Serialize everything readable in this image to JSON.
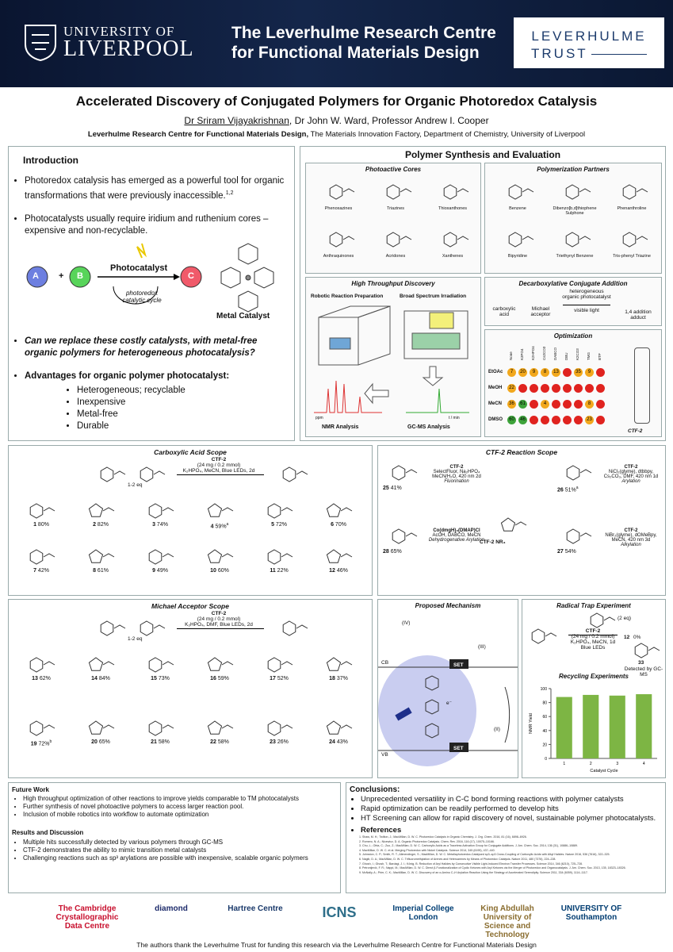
{
  "header": {
    "university_line1": "UNIVERSITY OF",
    "university_line2": "LIVERPOOL",
    "centre_line1": "The Leverhulme Research Centre",
    "centre_line2": "for Functional Materials Design",
    "trust_line1": "LEVERHULME",
    "trust_line2": "TRUST"
  },
  "title": "Accelerated Discovery of Conjugated Polymers for Organic Photoredox Catalysis",
  "authors": {
    "lead": "Dr Sriram Vijayakrishnan",
    "others": ", Dr John W. Ward, Professor Andrew I. Cooper"
  },
  "affiliation": {
    "centre": "Leverhulme Research Centre for Functional Materials Design,",
    "rest": " The Materials Innovation Factory, Department of Chemistry, University of Liverpool"
  },
  "introduction": {
    "heading": "Introduction",
    "bullets": [
      {
        "text": "Photoredox catalysis has emerged as a powerful tool for organic transformations that were previously inaccessible.",
        "sup": "1,2"
      },
      {
        "text": "Photocatalysts usually require iridium and ruthenium cores – expensive and non-recyclable."
      }
    ],
    "scheme": {
      "a": "A",
      "plus": "+",
      "b": "B",
      "c": "C",
      "catalyst": "Photocatalyst",
      "cycle": "photoredox catalytic cycle",
      "metal": "Metal Catalyst"
    },
    "question": "Can we replace these costly catalysts, with metal-free organic polymers for heterogeneous photocatalysis?",
    "advantages_heading": "Advantages for organic polymer photocatalyst:",
    "advantages": [
      "Heterogeneous; recyclable",
      "Inexpensive",
      "Metal-free",
      "Durable"
    ]
  },
  "synthesis": {
    "heading": "Polymer Synthesis and Evaluation",
    "cores": {
      "heading": "Photoactive Cores",
      "items": [
        "Phenoxazines",
        "Triazines",
        "Thioxanthones",
        "Anthraquinones",
        "Acridones",
        "Xanthenes"
      ]
    },
    "partners": {
      "heading": "Polymerization Partners",
      "items": [
        "Benzene",
        "Dibenzo[b,d]thiophene Sulphone",
        "Phenanthroline",
        "Bipyridine",
        "Triethynyl Benzene",
        "Tris-phenyl Triazine"
      ]
    },
    "hts": {
      "heading": "High Throughput Discovery",
      "robot": "Robotic Reaction Preparation",
      "irradiation": "Broad Spectrum Irradiation",
      "ppm": "ppm",
      "time": "t / min",
      "nmr": "NMR Analysis",
      "gcms": "GC-MS Analysis"
    },
    "decarbox": {
      "heading": "Decarboxylative Conjugate Addition",
      "acid": "carboxylic acid",
      "acceptor": "Michael acceptor",
      "conditions": "heterogeneous organic photocatalyst",
      "light": "visible light",
      "product": "1,4 addition adduct"
    },
    "optimization": {
      "heading": "Optimization",
      "columns": [
        "None",
        "K3PO4",
        "K2HPO4",
        "Cs2CO3",
        "DABCO",
        "DBU",
        "K2CO3",
        "TMG",
        "BTP"
      ],
      "rows": [
        {
          "solvent": "EtOAc",
          "cells": [
            7,
            20,
            9,
            8,
            13,
            null,
            35,
            9,
            null
          ]
        },
        {
          "solvent": "MeOH",
          "cells": [
            22,
            null,
            null,
            null,
            null,
            null,
            null,
            null,
            null
          ]
        },
        {
          "solvent": "MeCN",
          "cells": [
            36,
            61,
            null,
            4,
            null,
            null,
            null,
            8,
            null
          ]
        },
        {
          "solvent": "DMSO",
          "cells": [
            60,
            46,
            null,
            null,
            null,
            null,
            null,
            23,
            null
          ]
        }
      ],
      "catalyst": "CTF-2"
    }
  },
  "carboxylic_scope": {
    "heading": "Carboxylic Acid Scope",
    "conditions": [
      "CTF-2",
      "(24 mg / 0.2 mmol)",
      "K₂HPO₄, MeCN, Blue LEDs, 2d"
    ],
    "equiv": "1-2 eq",
    "compounds": [
      {
        "id": "1",
        "yield": "80%"
      },
      {
        "id": "2",
        "yield": "82%"
      },
      {
        "id": "3",
        "yield": "74%"
      },
      {
        "id": "4",
        "yield": "59%",
        "sup": "a"
      },
      {
        "id": "5",
        "yield": "72%"
      },
      {
        "id": "6",
        "yield": "70%"
      },
      {
        "id": "7",
        "yield": "42%"
      },
      {
        "id": "8",
        "yield": "61%"
      },
      {
        "id": "9",
        "yield": "49%"
      },
      {
        "id": "10",
        "yield": "60%"
      },
      {
        "id": "11",
        "yield": "22%"
      },
      {
        "id": "12",
        "yield": "46%"
      }
    ]
  },
  "ctf2_scope": {
    "heading": "CTF-2 Reaction Scope",
    "center": "CTF-2  NR₃",
    "fluorination": {
      "conditions": [
        "CTF-2",
        "SelectFluor, Na₂HPO₄",
        "MeCN/H₂O, 420 nm 2d"
      ],
      "name": "Fluorination",
      "id": "25",
      "yield": "41%"
    },
    "arylation": {
      "conditions": [
        "CTF-2",
        "NiCl₂(glyme), dtbbpy,",
        "Cs₂CO₃, DMF, 420 nm 1d"
      ],
      "name": "Arylation",
      "id": "26",
      "yield": "51%",
      "sup": "a"
    },
    "alkylation": {
      "conditions": [
        "CTF-2",
        "NiBr₂(glyme), dOMeBpy,",
        "MeCN, 420 nm 3d"
      ],
      "name": "Alkylation",
      "id": "27",
      "yield": "54%"
    },
    "dehydro": {
      "conditions": [
        "Co(dmgH)₂(DMAP)Cl",
        "AcOH, DABCO, MeCN"
      ],
      "name": "Dehydrogenative Arylation",
      "id": "28",
      "yield": "65%"
    }
  },
  "michael_scope": {
    "heading": "Michael Acceptor Scope",
    "conditions": [
      "CTF-2",
      "(24 mg / 0.2 mmol)",
      "K₂HPO₄, DMF, Blue LEDs, 2d"
    ],
    "equiv": "1-2 eq",
    "compounds": [
      {
        "id": "13",
        "yield": "62%"
      },
      {
        "id": "14",
        "yield": "84%"
      },
      {
        "id": "15",
        "yield": "73%"
      },
      {
        "id": "16",
        "yield": "59%"
      },
      {
        "id": "17",
        "yield": "52%"
      },
      {
        "id": "18",
        "yield": "37%"
      },
      {
        "id": "19",
        "yield": "72%",
        "sup": "b"
      },
      {
        "id": "20",
        "yield": "65%"
      },
      {
        "id": "21",
        "yield": "58%"
      },
      {
        "id": "22",
        "yield": "58%"
      },
      {
        "id": "23",
        "yield": "26%"
      },
      {
        "id": "24",
        "yield": "43%"
      }
    ]
  },
  "mechanism": {
    "heading": "Proposed Mechanism",
    "set": "SET",
    "cb": "CB",
    "vb": "VB",
    "electron": "e⁻",
    "steps": [
      "(IV)",
      "(III)",
      "(II)"
    ]
  },
  "radical_trap": {
    "heading": "Radical Trap Experiment",
    "tempo": "(2 eq)",
    "conditions": [
      "CTF-2",
      "(24 mg / 0.2 mmol)",
      "K₂HPO₄, MeCN, 1d",
      "Blue LEDs"
    ],
    "product": "12",
    "yield": "0%",
    "adduct": "33",
    "detected": "Detected by GC-MS"
  },
  "recycling": {
    "heading": "Recycling Experiments",
    "ylabel": "NMR Yield",
    "xlabel": "Catalyst Cycle",
    "categories": [
      "1",
      "2",
      "3",
      "4"
    ],
    "values": [
      88,
      91,
      90,
      92
    ],
    "ylim": [
      0,
      100
    ],
    "yticks": [
      0,
      20,
      40,
      60,
      80,
      100
    ],
    "color": "#7db544"
  },
  "future": {
    "heading": "Future Work",
    "items": [
      "High throughput optimization of other reactions to improve yields comparable to TM photocatalysts",
      "Further synthesis of novel photoactive polymers to access larger reaction pool.",
      "Inclusion of mobile robotics into workflow to automate optimization"
    ]
  },
  "results": {
    "heading": "Results and Discussion",
    "items": [
      "Multiple hits successfully detected by various polymers through GC-MS",
      "CTF-2 demonstrates the ability to mimic transition metal catalysts",
      "Challenging reactions such as sp³ arylations are possible with inexpensive, scalable organic polymers"
    ]
  },
  "conclusions": {
    "heading": "Conclusions:",
    "items": [
      "Unprecedented versatility in C-C bond forming reactions with polymer catalysts",
      "Rapid optimization can be readily performed to develop hits",
      "HT Screening can allow for rapid discovery of novel, sustainable polymer photocatalysts."
    ]
  },
  "references": {
    "heading": "References",
    "items": [
      "Shaw, M. H.; Twilton, J.; MacMillan, D. W. C. Photoredox Catalysis in Organic Chemistry. J. Org. Chem. 2016, 81 (16), 6898–6926.",
      "Romero, N. A.; Nicewicz, D. A. Organic Photoredox Catalysis. Chem. Rev. 2016, 116 (17), 10075–10166.",
      "Chu, L.; Ohta, C.; Zuo, Z.; MacMillan, D. W. C. Carboxylic Acids as a Traceless Activation Group for Conjugate Additions. J. Am. Chem. Soc. 2014, 136 (31), 10886–10889.",
      "MacMillan, D. W. C. et al. Merging Photoredox with Nickel Catalysis. Science 2014, 345 (6195), 437–440.",
      "Johnston, C. P.; Smith, R. T.; Allmendinger, S.; MacMillan, D. W. C. Metallaphotoredox-Catalysed sp3–sp3 Cross-Coupling of Carboxylic Acids with Alkyl Halides. Nature 2016, 536 (7616), 322–325.",
      "Nagib, D. A.; MacMillan, D. W. C. Trifluoromethylation of Arenes and Heteroarenes by Means of Photoredox Catalysis. Nature 2011, 480 (7376), 224–228.",
      "Ghosh, I.; Ghosh, T.; Bardagi, J. I.; König, B. Reduction of Aryl Halides by Consecutive Visible Light-Induced Electron Transfer Processes. Science 2014, 346 (6210), 725–728.",
      "Petronijević, F. R.; Nappi, M.; MacMillan, D. W. C. Direct β-Functionalization of Cyclic Ketones with Aryl Ketones via the Merger of Photoredox and Organocatalysis. J. Am. Chem. Soc. 2013, 135, 18323–18326.",
      "McNally, A.; Prier, C. K.; MacMillan, D. W. C. Discovery of an α-Amino C–H Arylation Reaction Using the Strategy of Accelerated Serendipity. Science 2011, 334 (6059), 1114–1117."
    ]
  },
  "logos": [
    "The Cambridge Crystallographic Data Centre",
    "diamond",
    "Hartree Centre",
    "ICNS",
    "Imperial College London",
    "King Abdullah University of Science and Technology",
    "UNIVERSITY OF Southampton"
  ],
  "footer": "The authors thank the Leverhulme Trust for funding this research via the Leverhulme Research Centre for Functional Materials Design"
}
